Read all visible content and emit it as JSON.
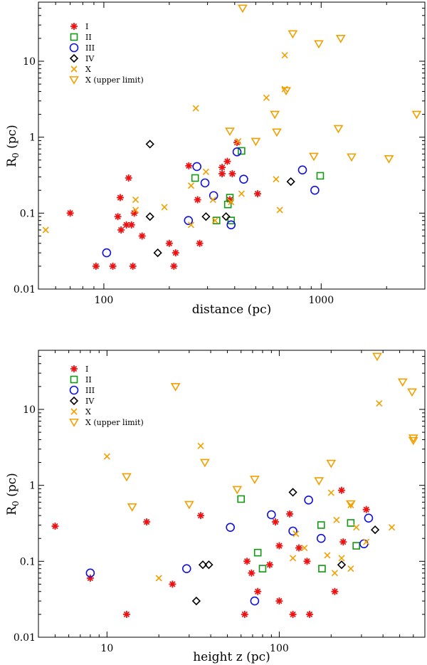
{
  "colors": {
    "I": "#ee1111",
    "II": "#119911",
    "III": "#1111dd",
    "IV": "#000000",
    "X": "#f0a000",
    "X_upper": "#f0a000"
  },
  "chart_data": [
    {
      "type": "scatter",
      "xscale": "log",
      "yscale": "log",
      "xlim": [
        50,
        3000
      ],
      "ylim": [
        0.01,
        60
      ],
      "xlabel": "distance (pc)",
      "ylabel_main": "R",
      "ylabel_sub": "0",
      "ylabel_rest": " (pc)",
      "xticks": [
        {
          "value": 100,
          "label": "100"
        },
        {
          "value": 1000,
          "label": "1000"
        }
      ],
      "yticks": [
        {
          "value": 0.01,
          "label": "0.01"
        },
        {
          "value": 0.1,
          "label": "0.1"
        },
        {
          "value": 1,
          "label": "1"
        },
        {
          "value": 10,
          "label": "10"
        }
      ],
      "legend_position": "top-left",
      "series": [
        {
          "name": "I",
          "marker": "asterisk",
          "points": [
            [
              92,
              0.02
            ],
            [
              110,
              0.02
            ],
            [
              136,
              0.02
            ],
            [
              210,
              0.02
            ],
            [
              120,
              0.06
            ],
            [
              127,
              0.07
            ],
            [
              134,
              0.07
            ],
            [
              116,
              0.09
            ],
            [
              138,
              0.1
            ],
            [
              150,
              0.05
            ],
            [
              200,
              0.04
            ],
            [
              214,
              0.03
            ],
            [
              119,
              0.16
            ],
            [
              130,
              0.29
            ],
            [
              70,
              0.1
            ],
            [
              246,
              0.42
            ],
            [
              270,
              0.15
            ],
            [
              276,
              0.04
            ],
            [
              350,
              0.33
            ],
            [
              350,
              0.4
            ],
            [
              370,
              0.48
            ],
            [
              390,
              0.33
            ],
            [
              410,
              0.85
            ],
            [
              380,
              0.15
            ],
            [
              510,
              0.18
            ]
          ]
        },
        {
          "name": "II",
          "marker": "square",
          "points": [
            [
              263,
              0.29
            ],
            [
              330,
              0.08
            ],
            [
              372,
              0.13
            ],
            [
              380,
              0.16
            ],
            [
              385,
              0.08
            ],
            [
              430,
              0.66
            ],
            [
              990,
              0.31
            ]
          ]
        },
        {
          "name": "III",
          "marker": "circle",
          "points": [
            [
              103,
              0.03
            ],
            [
              245,
              0.08
            ],
            [
              268,
              0.41
            ],
            [
              292,
              0.25
            ],
            [
              320,
              0.17
            ],
            [
              385,
              0.07
            ],
            [
              410,
              0.64
            ],
            [
              440,
              0.28
            ],
            [
              820,
              0.37
            ],
            [
              935,
              0.2
            ]
          ]
        },
        {
          "name": "IV",
          "marker": "diamond",
          "points": [
            [
              163,
              0.81
            ],
            [
              163,
              0.09
            ],
            [
              177,
              0.03
            ],
            [
              295,
              0.09
            ],
            [
              365,
              0.09
            ],
            [
              725,
              0.26
            ]
          ]
        },
        {
          "name": "X",
          "marker": "cross",
          "points": [
            [
              54,
              0.06
            ],
            [
              140,
              0.15
            ],
            [
              140,
              0.11
            ],
            [
              190,
              0.12
            ],
            [
              252,
              0.23
            ],
            [
              252,
              0.07
            ],
            [
              265,
              2.4
            ],
            [
              295,
              0.35
            ],
            [
              318,
              0.15
            ],
            [
              325,
              0.08
            ],
            [
              385,
              0.14
            ],
            [
              415,
              0.88
            ],
            [
              430,
              0.18
            ],
            [
              560,
              3.3
            ],
            [
              620,
              0.28
            ],
            [
              645,
              0.11
            ],
            [
              680,
              4.3
            ],
            [
              680,
              12
            ]
          ]
        },
        {
          "name": "X (upper limit)",
          "marker": "triangle-down",
          "points": [
            [
              435,
              50
            ],
            [
              740,
              23
            ],
            [
              975,
              17
            ],
            [
              1230,
              20
            ],
            [
              690,
              4.1
            ],
            [
              612,
              2
            ],
            [
              625,
              1.17
            ],
            [
              380,
              1.2
            ],
            [
              500,
              0.88
            ],
            [
              925,
              0.56
            ],
            [
              1200,
              1.3
            ],
            [
              1380,
              0.55
            ],
            [
              2050,
              0.52
            ],
            [
              2750,
              2
            ]
          ]
        }
      ]
    },
    {
      "type": "scatter",
      "xscale": "log",
      "yscale": "log",
      "xlim": [
        4,
        700
      ],
      "ylim": [
        0.01,
        60
      ],
      "xlabel": "height z (pc)",
      "ylabel_main": "R",
      "ylabel_sub": "0",
      "ylabel_rest": " (pc)",
      "xticks": [
        {
          "value": 10,
          "label": "10"
        },
        {
          "value": 100,
          "label": "100"
        }
      ],
      "yticks": [
        {
          "value": 0.01,
          "label": "0.01"
        },
        {
          "value": 0.1,
          "label": "0.1"
        },
        {
          "value": 1,
          "label": "1"
        },
        {
          "value": 10,
          "label": "10"
        }
      ],
      "legend_position": "top-left",
      "series": [
        {
          "name": "I",
          "marker": "asterisk",
          "points": [
            [
              5,
              0.29
            ],
            [
              8,
              0.06
            ],
            [
              13,
              0.02
            ],
            [
              17,
              0.33
            ],
            [
              24,
              0.05
            ],
            [
              35,
              0.4
            ],
            [
              63,
              0.02
            ],
            [
              65,
              0.1
            ],
            [
              69,
              0.07
            ],
            [
              75,
              0.04
            ],
            [
              88,
              0.09
            ],
            [
              95,
              0.33
            ],
            [
              100,
              0.16
            ],
            [
              100,
              0.03
            ],
            [
              115,
              0.42
            ],
            [
              120,
              0.02
            ],
            [
              130,
              0.15
            ],
            [
              145,
              0.1
            ],
            [
              150,
              0.02
            ],
            [
              210,
              0.04
            ],
            [
              230,
              0.86
            ],
            [
              235,
              0.18
            ],
            [
              320,
              0.48
            ]
          ]
        },
        {
          "name": "II",
          "marker": "square",
          "points": [
            [
              60,
              0.66
            ],
            [
              75,
              0.13
            ],
            [
              80,
              0.08
            ],
            [
              175,
              0.3
            ],
            [
              177,
              0.08
            ],
            [
              260,
              0.32
            ],
            [
              280,
              0.16
            ]
          ]
        },
        {
          "name": "III",
          "marker": "circle",
          "points": [
            [
              8,
              0.07
            ],
            [
              29,
              0.08
            ],
            [
              52,
              0.28
            ],
            [
              72,
              0.03
            ],
            [
              90,
              0.41
            ],
            [
              120,
              0.25
            ],
            [
              148,
              0.64
            ],
            [
              175,
              0.2
            ],
            [
              310,
              0.17
            ],
            [
              330,
              0.37
            ]
          ]
        },
        {
          "name": "IV",
          "marker": "diamond",
          "points": [
            [
              33,
              0.03
            ],
            [
              36,
              0.09
            ],
            [
              39,
              0.09
            ],
            [
              120,
              0.81
            ],
            [
              230,
              0.09
            ],
            [
              360,
              0.26
            ]
          ]
        },
        {
          "name": "X",
          "marker": "cross",
          "points": [
            [
              10,
              2.4
            ],
            [
              20,
              0.06
            ],
            [
              35,
              3.3
            ],
            [
              120,
              0.11
            ],
            [
              125,
              0.23
            ],
            [
              140,
              0.15
            ],
            [
              190,
              0.12
            ],
            [
              200,
              0.8
            ],
            [
              210,
              0.07
            ],
            [
              215,
              0.35
            ],
            [
              230,
              0.11
            ],
            [
              260,
              0.55
            ],
            [
              260,
              0.08
            ],
            [
              280,
              0.28
            ],
            [
              320,
              0.18
            ],
            [
              380,
              12
            ],
            [
              450,
              0.28
            ]
          ]
        },
        {
          "name": "X (upper limit)",
          "marker": "triangle-down",
          "points": [
            [
              13,
              1.3
            ],
            [
              14,
              0.52
            ],
            [
              25,
              20
            ],
            [
              30,
              0.56
            ],
            [
              37,
              2
            ],
            [
              57,
              0.88
            ],
            [
              72,
              1.2
            ],
            [
              170,
              1.15
            ],
            [
              200,
              1.95
            ],
            [
              260,
              0.57
            ],
            [
              370,
              50
            ],
            [
              520,
              23
            ],
            [
              590,
              17
            ],
            [
              600,
              4.2
            ],
            [
              600,
              3.9
            ]
          ]
        }
      ]
    }
  ]
}
